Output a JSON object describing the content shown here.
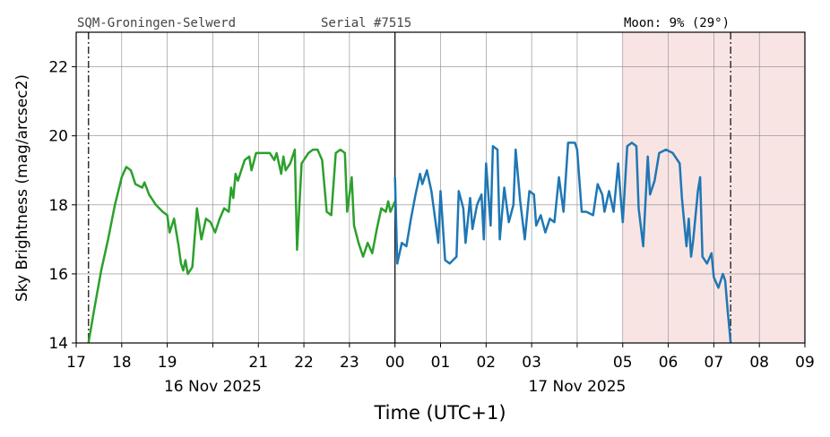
{
  "chart_data": {
    "type": "line",
    "header": {
      "site": "SQM-Groningen-Selwerd",
      "serial": "Serial #7515",
      "moon": "Moon: 9% (29°)"
    },
    "ylabel": "Sky Brightness (mag/arcsec2)",
    "xlabel": "Time (UTC+1)",
    "xlim": [
      17,
      33
    ],
    "ylim": [
      14,
      23
    ],
    "xticks": [
      17,
      18,
      19,
      {
        "value": 20,
        "label": null
      },
      21,
      22,
      23,
      {
        "value": 24,
        "label": "00"
      },
      {
        "value": 25,
        "label": "01"
      },
      {
        "value": 26,
        "label": "02"
      },
      {
        "value": 27,
        "label": "03"
      },
      {
        "value": 28,
        "label": null
      },
      {
        "value": 29,
        "label": "05"
      },
      {
        "value": 30,
        "label": "06"
      },
      {
        "value": 31,
        "label": "07"
      },
      {
        "value": 32,
        "label": "08"
      },
      {
        "value": 33,
        "label": "09"
      }
    ],
    "yticks": [
      14,
      16,
      18,
      20,
      22
    ],
    "date_labels": [
      {
        "value": 20,
        "label": "16 Nov 2025"
      },
      {
        "value": 28,
        "label": "17 Nov 2025"
      }
    ],
    "grid": true,
    "moon_shade": {
      "xlim": [
        29,
        33
      ],
      "color": "#f9e4e4"
    },
    "twilight_lines": [
      17.27,
      31.37
    ],
    "midnight_line": 24,
    "series": [
      {
        "color": "#2ca02c",
        "x": [
          17.27,
          17.4,
          17.55,
          17.7,
          17.85,
          18.0,
          18.1,
          18.2,
          18.3,
          18.45,
          18.5,
          18.6,
          18.75,
          18.9,
          19.0,
          19.05,
          19.15,
          19.25,
          19.3,
          19.35,
          19.4,
          19.45,
          19.55,
          19.65,
          19.75,
          19.85,
          19.95,
          20.05,
          20.15,
          20.25,
          20.35,
          20.4,
          20.45,
          20.5,
          20.55,
          20.7,
          20.8,
          20.85,
          20.95,
          21.1,
          21.25,
          21.35,
          21.4,
          21.5,
          21.55,
          21.6,
          21.7,
          21.8,
          21.85,
          21.95,
          22.1,
          22.2,
          22.3,
          22.4,
          22.5,
          22.6,
          22.7,
          22.8,
          22.9,
          22.95,
          23.05,
          23.1,
          23.2,
          23.3,
          23.4,
          23.5,
          23.6,
          23.7,
          23.8,
          23.85,
          23.9,
          24.0
        ],
        "values": [
          14.0,
          15.0,
          16.1,
          17.0,
          18.0,
          18.8,
          19.1,
          19.0,
          18.6,
          18.5,
          18.65,
          18.3,
          18.0,
          17.8,
          17.7,
          17.2,
          17.6,
          16.8,
          16.3,
          16.1,
          16.4,
          16.0,
          16.2,
          17.9,
          17.0,
          17.6,
          17.5,
          17.2,
          17.6,
          17.9,
          17.8,
          18.5,
          18.2,
          18.9,
          18.7,
          19.3,
          19.4,
          19.0,
          19.5,
          19.5,
          19.5,
          19.3,
          19.5,
          18.9,
          19.4,
          19.0,
          19.2,
          19.6,
          16.7,
          19.2,
          19.5,
          19.6,
          19.6,
          19.3,
          17.8,
          17.7,
          19.5,
          19.6,
          19.5,
          17.8,
          18.8,
          17.4,
          16.9,
          16.5,
          16.9,
          16.6,
          17.3,
          17.9,
          17.8,
          18.1,
          17.8,
          18.1
        ]
      },
      {
        "color": "#1f77b4",
        "x": [
          24.0,
          24.05,
          24.15,
          24.25,
          24.35,
          24.45,
          24.55,
          24.6,
          24.7,
          24.8,
          24.85,
          24.95,
          25.0,
          25.1,
          25.2,
          25.35,
          25.4,
          25.5,
          25.55,
          25.65,
          25.7,
          25.8,
          25.9,
          25.95,
          26.0,
          26.1,
          26.15,
          26.25,
          26.3,
          26.4,
          26.5,
          26.6,
          26.65,
          26.75,
          26.85,
          26.95,
          27.05,
          27.1,
          27.2,
          27.3,
          27.4,
          27.5,
          27.6,
          27.7,
          27.8,
          27.95,
          28.0,
          28.1,
          28.2,
          28.35,
          28.45,
          28.55,
          28.6,
          28.7,
          28.8,
          28.9,
          28.95,
          29.0,
          29.1,
          29.2,
          29.3,
          29.35,
          29.45,
          29.55,
          29.6,
          29.7,
          29.8,
          29.95,
          30.1,
          30.25,
          30.3,
          30.35,
          30.4,
          30.45,
          30.5,
          30.55,
          30.65,
          30.7,
          30.75,
          30.85,
          30.95,
          31.0,
          31.1,
          31.2,
          31.25,
          31.3,
          31.37
        ],
        "values": [
          18.8,
          16.3,
          16.9,
          16.8,
          17.6,
          18.3,
          18.9,
          18.6,
          19.0,
          18.4,
          17.9,
          16.9,
          18.4,
          16.4,
          16.3,
          16.5,
          18.4,
          17.9,
          16.9,
          18.2,
          17.3,
          18.0,
          18.3,
          17.0,
          19.2,
          17.4,
          19.7,
          19.6,
          17.0,
          18.5,
          17.5,
          18.0,
          19.6,
          18.1,
          17.0,
          18.4,
          18.3,
          17.4,
          17.7,
          17.2,
          17.6,
          17.5,
          18.8,
          17.8,
          19.8,
          19.8,
          19.6,
          17.8,
          17.8,
          17.7,
          18.6,
          18.3,
          17.8,
          18.4,
          17.8,
          19.2,
          18.3,
          17.5,
          19.7,
          19.8,
          19.7,
          17.9,
          16.8,
          19.4,
          18.3,
          18.7,
          19.5,
          19.6,
          19.5,
          19.2,
          18.2,
          17.5,
          16.8,
          17.6,
          16.5,
          17.0,
          18.4,
          18.8,
          16.5,
          16.3,
          16.6,
          15.9,
          15.6,
          16.0,
          15.8,
          15.0,
          14.0
        ]
      }
    ]
  }
}
